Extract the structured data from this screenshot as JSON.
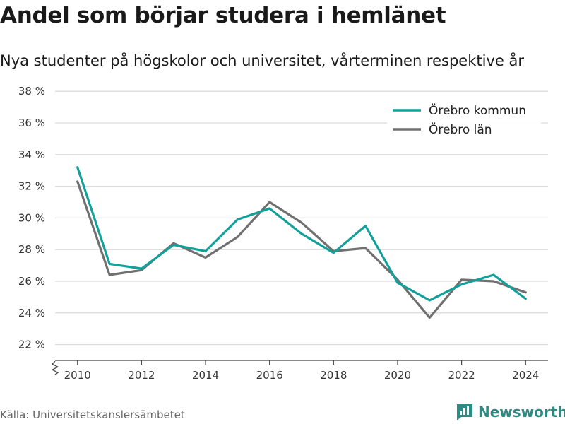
{
  "title": "Andel som börjar studera i hemlänet",
  "subtitle": "Nya studenter på högskolor och universitet, vårterminen respektive år",
  "source": "Källa: Universitetskanslersämbetet",
  "brand": "Newsworthy",
  "chart_data": {
    "type": "line",
    "x": [
      2010,
      2011,
      2012,
      2013,
      2014,
      2015,
      2016,
      2017,
      2018,
      2019,
      2020,
      2021,
      2022,
      2023,
      2024
    ],
    "x_ticks": [
      "2010",
      "2012",
      "2014",
      "2016",
      "2018",
      "2020",
      "2022",
      "2024"
    ],
    "y_ticks": [
      "22 %",
      "24 %",
      "26 %",
      "28 %",
      "30 %",
      "32 %",
      "34 %",
      "36 %",
      "38 %"
    ],
    "ylim": [
      21,
      38.5
    ],
    "xlim": [
      2009.3,
      2024.7
    ],
    "grid": true,
    "axis_break": true,
    "legend_position": "top-right",
    "series": [
      {
        "name": "Örebro kommun",
        "color": "#12a09a",
        "values": [
          33.2,
          27.1,
          26.8,
          28.3,
          27.9,
          29.9,
          30.6,
          29.0,
          27.8,
          29.5,
          25.9,
          24.8,
          25.8,
          26.4,
          24.9
        ]
      },
      {
        "name": "Örebro län",
        "color": "#707070",
        "values": [
          32.3,
          26.4,
          26.7,
          28.4,
          27.5,
          28.8,
          31.0,
          29.7,
          27.9,
          28.1,
          26.1,
          23.7,
          26.1,
          26.0,
          25.3
        ]
      }
    ]
  }
}
